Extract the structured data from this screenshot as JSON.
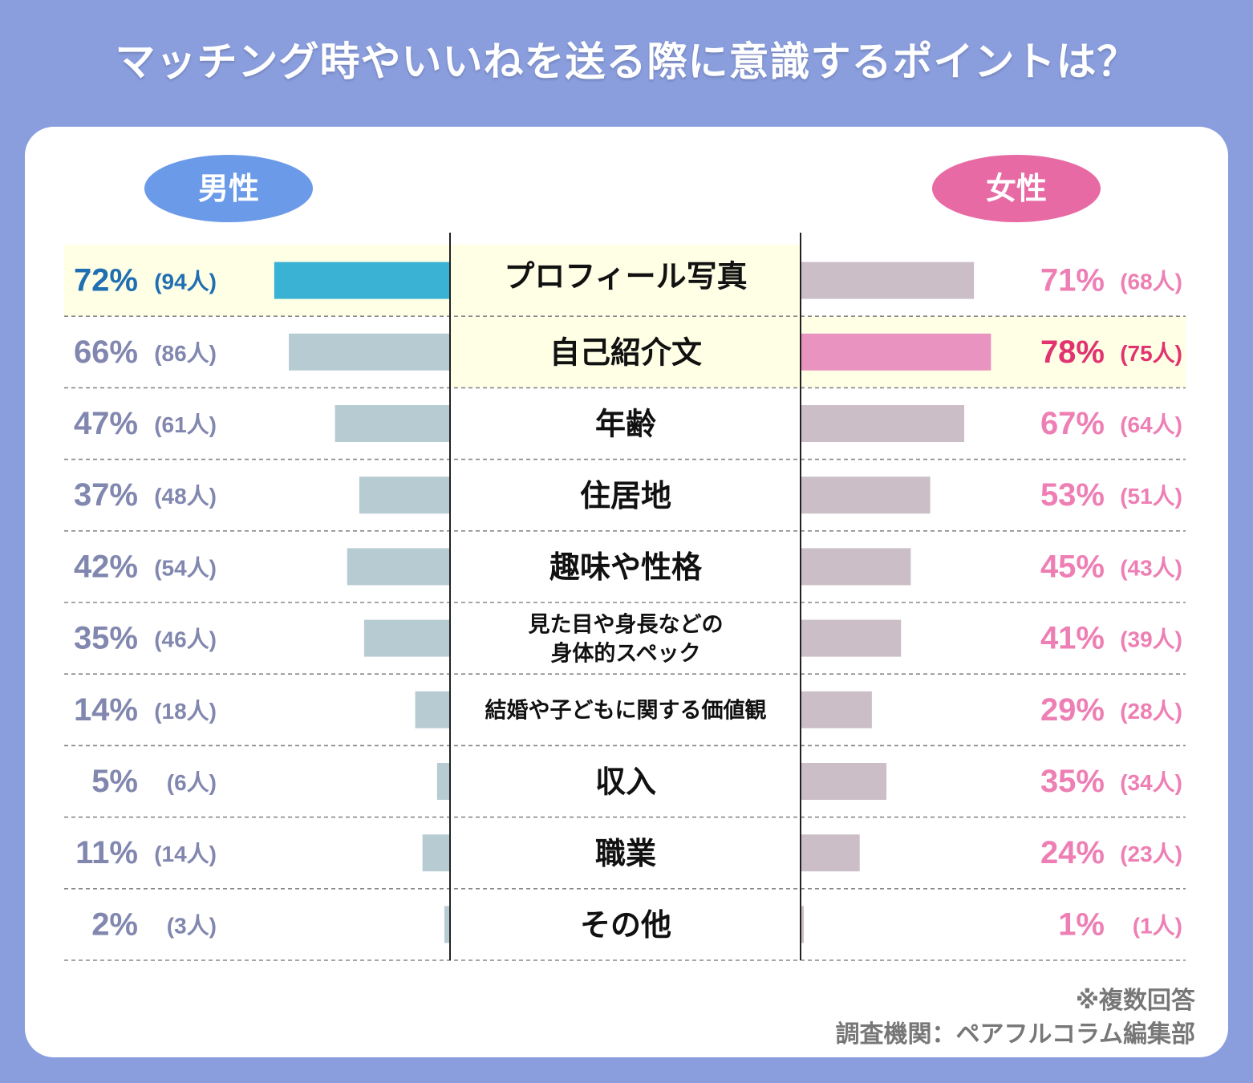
{
  "title": "マッチング時やいいねを送る際に意識するポイントは？",
  "legend": {
    "male": "男性",
    "female": "女性"
  },
  "notes": {
    "multiple": "※複数回答",
    "source": "調査機関：ペアフルコラム編集部"
  },
  "colors": {
    "male_bar": "#b7cbd3",
    "male_highlight": "#3ab2d3",
    "female_bar": "#cbbec6",
    "female_highlight": "#e993c0",
    "male_text": "#8187ae",
    "male_text_highlight": "#1f6fb2",
    "female_text": "#ee7fb4",
    "female_text_highlight": "#e0336f",
    "highlight_bg": "#ffffe6"
  },
  "chart_data": {
    "type": "bar",
    "orientation": "butterfly-horizontal",
    "title": "マッチング時やいいねを送る際に意識するポイントは？",
    "categories": [
      "プロフィール写真",
      "自己紹介文",
      "年齢",
      "住居地",
      "趣味や性格",
      "見た目や身長などの\n身体的スペック",
      "結婚や子どもに関する価値観",
      "収入",
      "職業",
      "その他"
    ],
    "series": [
      {
        "name": "男性",
        "values": [
          72,
          66,
          47,
          37,
          42,
          35,
          14,
          5,
          11,
          2
        ],
        "percent_labels": [
          "72%",
          "66%",
          "47%",
          "37%",
          "42%",
          "35%",
          "14%",
          "5%",
          "11%",
          "2%"
        ],
        "count_labels": [
          "(94人)",
          "(86人)",
          "(61人)",
          "(48人)",
          "(54人)",
          "(46人)",
          "(18人)",
          "(6人)",
          "(14人)",
          "(3人)"
        ],
        "highlight_index": 0
      },
      {
        "name": "女性",
        "values": [
          71,
          78,
          67,
          53,
          45,
          41,
          29,
          35,
          24,
          1
        ],
        "percent_labels": [
          "71%",
          "78%",
          "67%",
          "53%",
          "45%",
          "41%",
          "29%",
          "35%",
          "24%",
          "1%"
        ],
        "count_labels": [
          "(68人)",
          "(75人)",
          "(64人)",
          "(51人)",
          "(43人)",
          "(39人)",
          "(28人)",
          "(34人)",
          "(23人)",
          "(1人)"
        ],
        "highlight_index": 1
      }
    ],
    "xlim": [
      0,
      80
    ],
    "note": "※複数回答"
  }
}
